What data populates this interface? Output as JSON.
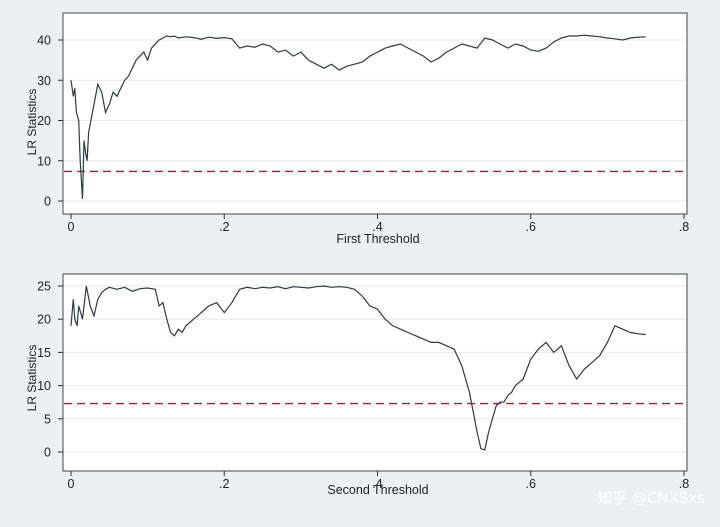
{
  "watermark": "知乎 @CNXSxs",
  "colors": {
    "background": "#eaf0f4",
    "plot_bg": "#ffffff",
    "line": "#2f3a44",
    "threshold": "#8e2a2a",
    "grid": "#e6e9ec"
  },
  "chart_data": [
    {
      "type": "line",
      "xlabel": "First Threshold",
      "ylabel": "LR Statistics",
      "xlim": [
        0,
        0.8
      ],
      "ylim": [
        0,
        40
      ],
      "xticks": [
        0,
        0.2,
        0.4,
        0.6,
        0.8
      ],
      "xtick_labels": [
        "0",
        ".2",
        ".4",
        ".6",
        ".8"
      ],
      "yticks": [
        0,
        10,
        20,
        30,
        40
      ],
      "ytick_labels": [
        "0",
        "10",
        "20",
        "30",
        "40"
      ],
      "grid": true,
      "critical_value": 7.35,
      "series": [
        {
          "x": [
            0.0,
            0.003,
            0.005,
            0.007,
            0.01,
            0.012,
            0.015,
            0.017,
            0.019,
            0.021,
            0.023,
            0.026,
            0.03,
            0.035,
            0.04,
            0.045,
            0.05,
            0.055,
            0.06,
            0.065,
            0.07,
            0.075,
            0.08,
            0.085,
            0.09,
            0.095,
            0.1,
            0.105,
            0.11,
            0.115,
            0.12,
            0.125,
            0.13,
            0.135,
            0.14,
            0.15,
            0.16,
            0.17,
            0.18,
            0.19,
            0.2,
            0.21,
            0.22,
            0.23,
            0.24,
            0.25,
            0.26,
            0.27,
            0.28,
            0.29,
            0.3,
            0.31,
            0.32,
            0.33,
            0.34,
            0.35,
            0.36,
            0.37,
            0.38,
            0.39,
            0.4,
            0.41,
            0.42,
            0.43,
            0.44,
            0.45,
            0.46,
            0.47,
            0.48,
            0.49,
            0.5,
            0.51,
            0.52,
            0.53,
            0.54,
            0.55,
            0.56,
            0.57,
            0.58,
            0.59,
            0.6,
            0.61,
            0.62,
            0.63,
            0.64,
            0.65,
            0.66,
            0.67,
            0.68,
            0.69,
            0.7,
            0.71,
            0.72,
            0.73,
            0.74,
            0.75
          ],
          "y": [
            30,
            26,
            28,
            22,
            20,
            10,
            0.5,
            15,
            12,
            10,
            17,
            20,
            24,
            29,
            27,
            22,
            24,
            27,
            26,
            28,
            30,
            31,
            33,
            35,
            36,
            37,
            35,
            38,
            39,
            40,
            40.5,
            41,
            40.8,
            41,
            40.5,
            40.8,
            40.6,
            40.2,
            40.7,
            40.4,
            40.6,
            40.3,
            38,
            38.5,
            38.2,
            39,
            38.5,
            37,
            37.5,
            36,
            37,
            35,
            34,
            33,
            34,
            32.5,
            33.5,
            34,
            34.5,
            36,
            37,
            38,
            38.5,
            39,
            38,
            37,
            36,
            34.5,
            35.5,
            37,
            38,
            39,
            38.5,
            38,
            40.5,
            40,
            39,
            38,
            39,
            38.5,
            37.5,
            37.2,
            38,
            39.5,
            40.5,
            41,
            41,
            41.2,
            41,
            40.8,
            40.5,
            40.3,
            40,
            40.5,
            40.7,
            40.8
          ]
        }
      ]
    },
    {
      "type": "line",
      "xlabel": "Second Threshold",
      "ylabel": "LR Statistics",
      "xlim": [
        0,
        0.8
      ],
      "ylim": [
        0,
        25
      ],
      "xticks": [
        0,
        0.2,
        0.4,
        0.6,
        0.8
      ],
      "xtick_labels": [
        "0",
        ".2",
        ".4",
        ".6",
        ".8"
      ],
      "yticks": [
        0,
        5,
        10,
        15,
        20,
        25
      ],
      "ytick_labels": [
        "0",
        "5",
        "10",
        "15",
        "20",
        "25"
      ],
      "grid": true,
      "critical_value": 7.3,
      "series": [
        {
          "x": [
            0.0,
            0.003,
            0.005,
            0.008,
            0.01,
            0.015,
            0.02,
            0.025,
            0.03,
            0.035,
            0.04,
            0.045,
            0.05,
            0.06,
            0.07,
            0.08,
            0.09,
            0.1,
            0.11,
            0.115,
            0.12,
            0.125,
            0.13,
            0.135,
            0.14,
            0.145,
            0.15,
            0.16,
            0.17,
            0.18,
            0.19,
            0.2,
            0.21,
            0.22,
            0.23,
            0.24,
            0.25,
            0.26,
            0.27,
            0.28,
            0.29,
            0.3,
            0.31,
            0.32,
            0.33,
            0.34,
            0.35,
            0.36,
            0.37,
            0.38,
            0.39,
            0.4,
            0.41,
            0.42,
            0.43,
            0.44,
            0.45,
            0.46,
            0.47,
            0.48,
            0.49,
            0.5,
            0.51,
            0.515,
            0.52,
            0.525,
            0.53,
            0.535,
            0.54,
            0.545,
            0.55,
            0.555,
            0.56,
            0.565,
            0.57,
            0.575,
            0.58,
            0.59,
            0.6,
            0.61,
            0.62,
            0.63,
            0.64,
            0.65,
            0.66,
            0.67,
            0.68,
            0.69,
            0.7,
            0.71,
            0.72,
            0.73,
            0.74,
            0.75
          ],
          "y": [
            19,
            23,
            20,
            19,
            22,
            20,
            25,
            22,
            20.5,
            23,
            24,
            24.5,
            24.8,
            24.5,
            24.8,
            24.2,
            24.6,
            24.7,
            24.5,
            22,
            22.5,
            20,
            18,
            17.5,
            18.5,
            18,
            19,
            20,
            21,
            22,
            22.5,
            21,
            22.5,
            24.5,
            24.8,
            24.6,
            24.8,
            24.7,
            24.9,
            24.6,
            24.9,
            24.8,
            24.7,
            24.9,
            25,
            24.8,
            24.9,
            24.8,
            24.5,
            23.5,
            22,
            21.5,
            20,
            19,
            18.5,
            18,
            17.5,
            17,
            16.5,
            16.5,
            16,
            15.5,
            13,
            11,
            9,
            6,
            3,
            0.5,
            0.3,
            3,
            5,
            7,
            7.5,
            7.5,
            8.5,
            9,
            10,
            11,
            14,
            15.5,
            16.5,
            15,
            16,
            13,
            11,
            12.5,
            13.5,
            14.5,
            16.5,
            19,
            18.5,
            18,
            17.8,
            17.7
          ]
        }
      ]
    }
  ]
}
